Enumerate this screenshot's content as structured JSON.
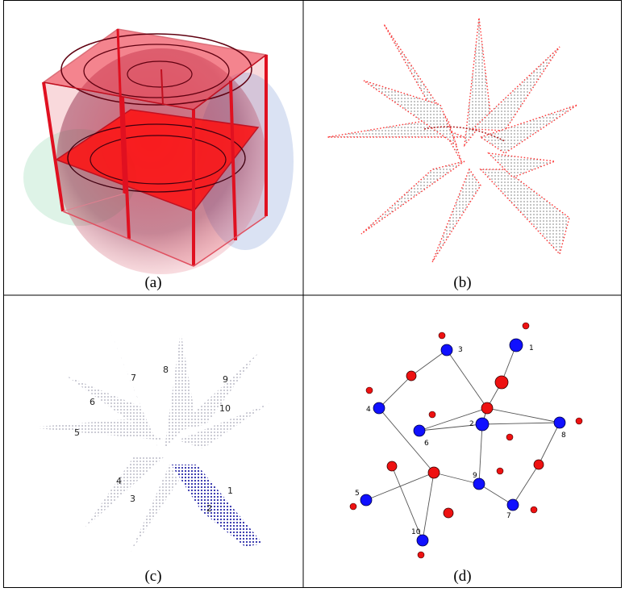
{
  "figure": {
    "captions": {
      "a": "(a)",
      "b": "(b)",
      "c": "(c)",
      "d": "(d)"
    },
    "panel_c_labels": [
      "1",
      "2",
      "3",
      "4",
      "5",
      "6",
      "7",
      "8",
      "9",
      "10"
    ],
    "panel_d_node_labels": [
      "1",
      "2",
      "3",
      "4",
      "5",
      "6",
      "7",
      "8",
      "9",
      "10"
    ],
    "colors": {
      "cube_red": "#e8303a",
      "point_red": "#ff2a2a",
      "mesh_gray": "#9a9a9a",
      "mesh_blue": "#2a2aa8",
      "node_blue": "#1010ff",
      "node_red": "#ee1111"
    }
  }
}
